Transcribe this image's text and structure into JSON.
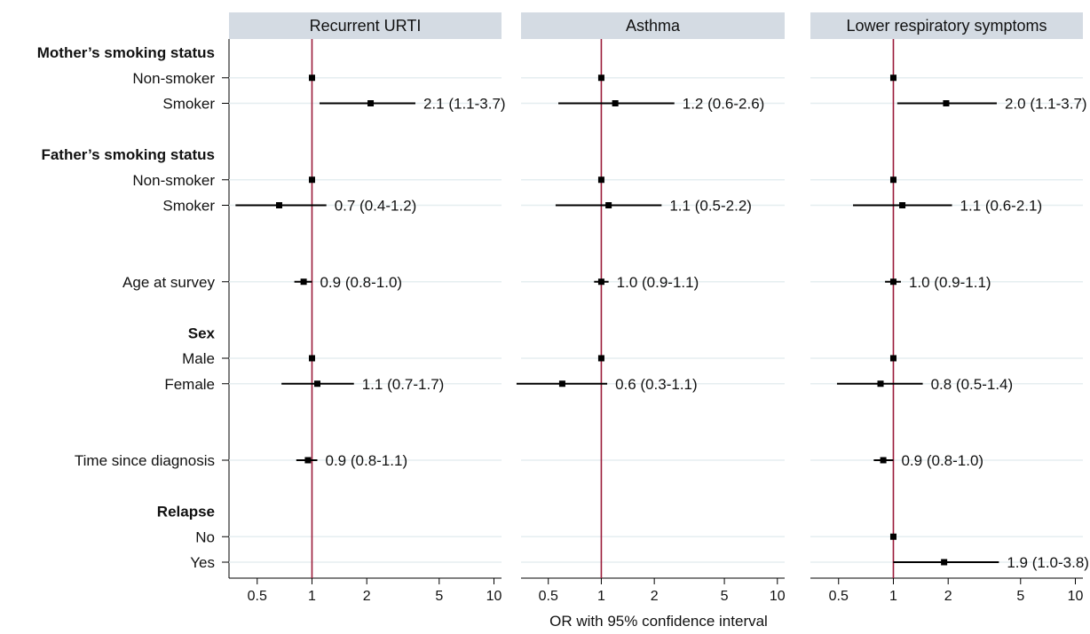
{
  "chart_data": {
    "type": "forest",
    "xlabel": "OR with 95% confidence interval",
    "x_scale": "log",
    "xlim": [
      0.35,
      11
    ],
    "xticks": [
      0.5,
      1,
      2,
      5,
      10
    ],
    "xtick_labels": [
      "0.5",
      "1",
      "2",
      "5",
      "10"
    ],
    "reference_line": 1,
    "colors": {
      "header_bg": "#d4dbe3",
      "reference_line": "#9b1b3a",
      "gridline": "#e5eef0",
      "marker": "#000000"
    },
    "rows": [
      {
        "label": "Mother’s smoking status",
        "header": true
      },
      {
        "label": "Non-smoker",
        "header": false
      },
      {
        "label": "Smoker",
        "header": false
      },
      {
        "label": "",
        "spacer": true
      },
      {
        "label": "Father’s smoking status",
        "header": true
      },
      {
        "label": "Non-smoker",
        "header": false
      },
      {
        "label": "Smoker",
        "header": false
      },
      {
        "label": "",
        "spacer": true
      },
      {
        "label": "",
        "spacer": true
      },
      {
        "label": "Age at survey",
        "header": false
      },
      {
        "label": "",
        "spacer": true
      },
      {
        "label": "Sex",
        "header": true
      },
      {
        "label": "Male",
        "header": false
      },
      {
        "label": "Female",
        "header": false
      },
      {
        "label": "",
        "spacer": true
      },
      {
        "label": "",
        "spacer": true
      },
      {
        "label": "Time since diagnosis",
        "header": false
      },
      {
        "label": "",
        "spacer": true
      },
      {
        "label": "Relapse",
        "header": true
      },
      {
        "label": "No",
        "header": false
      },
      {
        "label": "Yes",
        "header": false
      }
    ],
    "panels": [
      {
        "title": "Recurrent URTI",
        "estimates": [
          {
            "row": 1,
            "or": 1.0
          },
          {
            "row": 2,
            "or": 2.1,
            "lo": 1.1,
            "hi": 3.7,
            "text": "2.1 (1.1-3.7)"
          },
          {
            "row": 5,
            "or": 1.0
          },
          {
            "row": 6,
            "or": 0.66,
            "lo": 0.38,
            "hi": 1.2,
            "text": "0.7 (0.4-1.2)"
          },
          {
            "row": 9,
            "or": 0.9,
            "lo": 0.8,
            "hi": 1.0,
            "text": "0.9 (0.8-1.0)"
          },
          {
            "row": 12,
            "or": 1.0
          },
          {
            "row": 13,
            "or": 1.07,
            "lo": 0.68,
            "hi": 1.7,
            "text": "1.1 (0.7-1.7)"
          },
          {
            "row": 16,
            "or": 0.95,
            "lo": 0.82,
            "hi": 1.07,
            "text": "0.9 (0.8-1.1)"
          }
        ]
      },
      {
        "title": "Asthma",
        "estimates": [
          {
            "row": 1,
            "or": 1.0
          },
          {
            "row": 2,
            "or": 1.2,
            "lo": 0.57,
            "hi": 2.6,
            "text": "1.2 (0.6-2.6)"
          },
          {
            "row": 5,
            "or": 1.0
          },
          {
            "row": 6,
            "or": 1.1,
            "lo": 0.55,
            "hi": 2.2,
            "text": "1.1 (0.5-2.2)"
          },
          {
            "row": 9,
            "or": 1.0,
            "lo": 0.91,
            "hi": 1.1,
            "text": "1.0 (0.9-1.1)"
          },
          {
            "row": 12,
            "or": 1.0
          },
          {
            "row": 13,
            "or": 0.6,
            "lo": 0.33,
            "hi": 1.08,
            "text": "0.6 (0.3-1.1)"
          }
        ]
      },
      {
        "title": "Lower respiratory symptoms",
        "estimates": [
          {
            "row": 1,
            "or": 1.0
          },
          {
            "row": 2,
            "or": 1.95,
            "lo": 1.05,
            "hi": 3.7,
            "text": "2.0 (1.1-3.7)"
          },
          {
            "row": 5,
            "or": 1.0
          },
          {
            "row": 6,
            "or": 1.12,
            "lo": 0.6,
            "hi": 2.1,
            "text": "1.1 (0.6-2.1)"
          },
          {
            "row": 9,
            "or": 1.0,
            "lo": 0.9,
            "hi": 1.1,
            "text": "1.0 (0.9-1.1)"
          },
          {
            "row": 12,
            "or": 1.0
          },
          {
            "row": 13,
            "or": 0.85,
            "lo": 0.49,
            "hi": 1.45,
            "text": "0.8 (0.5-1.4)"
          },
          {
            "row": 16,
            "or": 0.88,
            "lo": 0.78,
            "hi": 1.0,
            "text": "0.9 (0.8-1.0)"
          },
          {
            "row": 19,
            "or": 1.0
          },
          {
            "row": 20,
            "or": 1.9,
            "lo": 1.0,
            "hi": 3.8,
            "text": "1.9 (1.0-3.8)"
          }
        ]
      }
    ]
  }
}
